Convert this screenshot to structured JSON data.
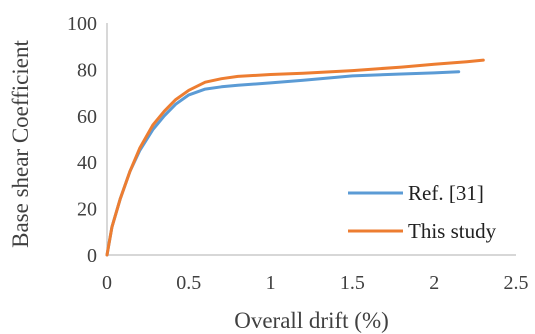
{
  "chart_data": {
    "type": "line",
    "title": "",
    "xlabel": "Overall drift (%)",
    "ylabel": "Base shear Coefficient",
    "xlim": [
      0,
      2.5
    ],
    "ylim": [
      0,
      100
    ],
    "xticks": [
      0,
      0.5,
      1,
      1.5,
      2,
      2.5
    ],
    "xtick_labels": [
      "0",
      "0.5",
      "1",
      "1.5",
      "2",
      "2.5"
    ],
    "yticks": [
      0,
      20,
      40,
      60,
      80,
      100
    ],
    "ytick_labels": [
      "0",
      "20",
      "40",
      "60",
      "80",
      "100"
    ],
    "grid": false,
    "legend_position": "bottom-right",
    "series": [
      {
        "name": "Ref. [31]",
        "color": "#5b9bd5",
        "x": [
          0,
          0.03,
          0.08,
          0.14,
          0.2,
          0.28,
          0.35,
          0.42,
          0.5,
          0.6,
          0.7,
          0.8,
          1.0,
          1.2,
          1.5,
          1.8,
          2.0,
          2.15
        ],
        "y": [
          0,
          12,
          24,
          36,
          45,
          54,
          60,
          65,
          69,
          71.5,
          72.5,
          73.2,
          74.2,
          75.3,
          77.2,
          78,
          78.5,
          79
        ]
      },
      {
        "name": "This study",
        "color": "#ed7d31",
        "x": [
          0,
          0.03,
          0.08,
          0.14,
          0.2,
          0.28,
          0.35,
          0.42,
          0.5,
          0.6,
          0.7,
          0.8,
          1.0,
          1.2,
          1.5,
          1.8,
          2.0,
          2.2,
          2.3
        ],
        "y": [
          0,
          12,
          24,
          36,
          46,
          56,
          62,
          67,
          71,
          74.5,
          76,
          77,
          77.8,
          78.3,
          79.5,
          81,
          82.2,
          83.3,
          84
        ]
      }
    ]
  }
}
